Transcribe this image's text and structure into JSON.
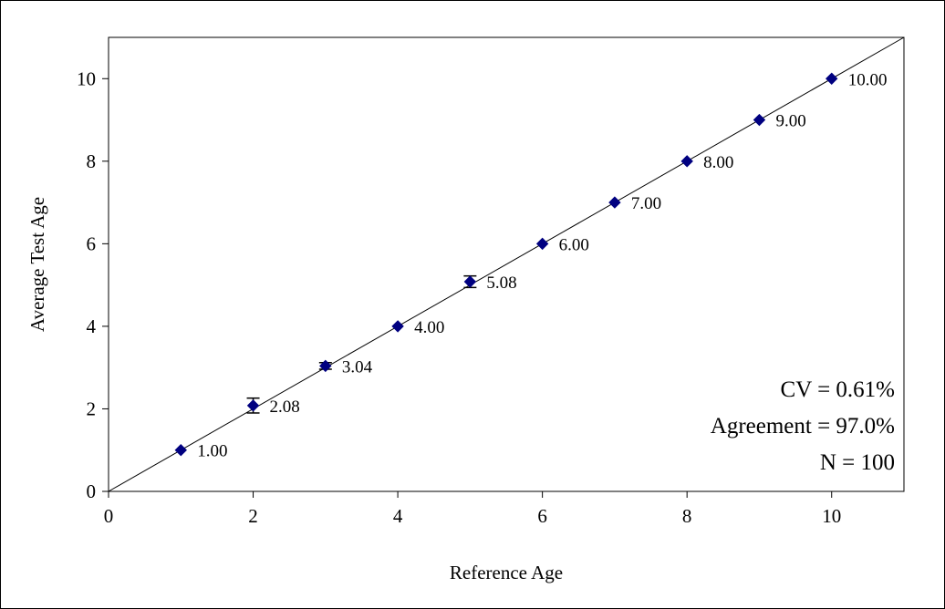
{
  "chart_data": {
    "type": "scatter",
    "title": "",
    "xlabel": "Reference Age",
    "ylabel": "Average Test Age",
    "xlim": [
      0,
      11
    ],
    "ylim": [
      0,
      11
    ],
    "x_ticks": [
      "0",
      "2",
      "4",
      "6",
      "8",
      "10"
    ],
    "y_ticks": [
      "0",
      "2",
      "4",
      "6",
      "8",
      "10"
    ],
    "grid": false,
    "legend": "none",
    "reference_line": {
      "type": "1:1",
      "from": [
        0,
        0
      ],
      "to": [
        11,
        11
      ]
    },
    "marker_color": "#000080",
    "points": [
      {
        "x": 1,
        "y": 1.0,
        "label": "1.00",
        "err": 0.0
      },
      {
        "x": 2,
        "y": 2.08,
        "label": "2.08",
        "err": 0.18
      },
      {
        "x": 3,
        "y": 3.04,
        "label": "3.04",
        "err": 0.08
      },
      {
        "x": 4,
        "y": 4.0,
        "label": "4.00",
        "err": 0.0
      },
      {
        "x": 5,
        "y": 5.08,
        "label": "5.08",
        "err": 0.14
      },
      {
        "x": 6,
        "y": 6.0,
        "label": "6.00",
        "err": 0.0
      },
      {
        "x": 7,
        "y": 7.0,
        "label": "7.00",
        "err": 0.0
      },
      {
        "x": 8,
        "y": 8.0,
        "label": "8.00",
        "err": 0.0
      },
      {
        "x": 9,
        "y": 9.0,
        "label": "9.00",
        "err": 0.0
      },
      {
        "x": 10,
        "y": 10.0,
        "label": "10.00",
        "err": 0.0
      }
    ],
    "annotations": [
      "CV = 0.61%",
      "Agreement = 97.0%",
      "N = 100"
    ]
  }
}
